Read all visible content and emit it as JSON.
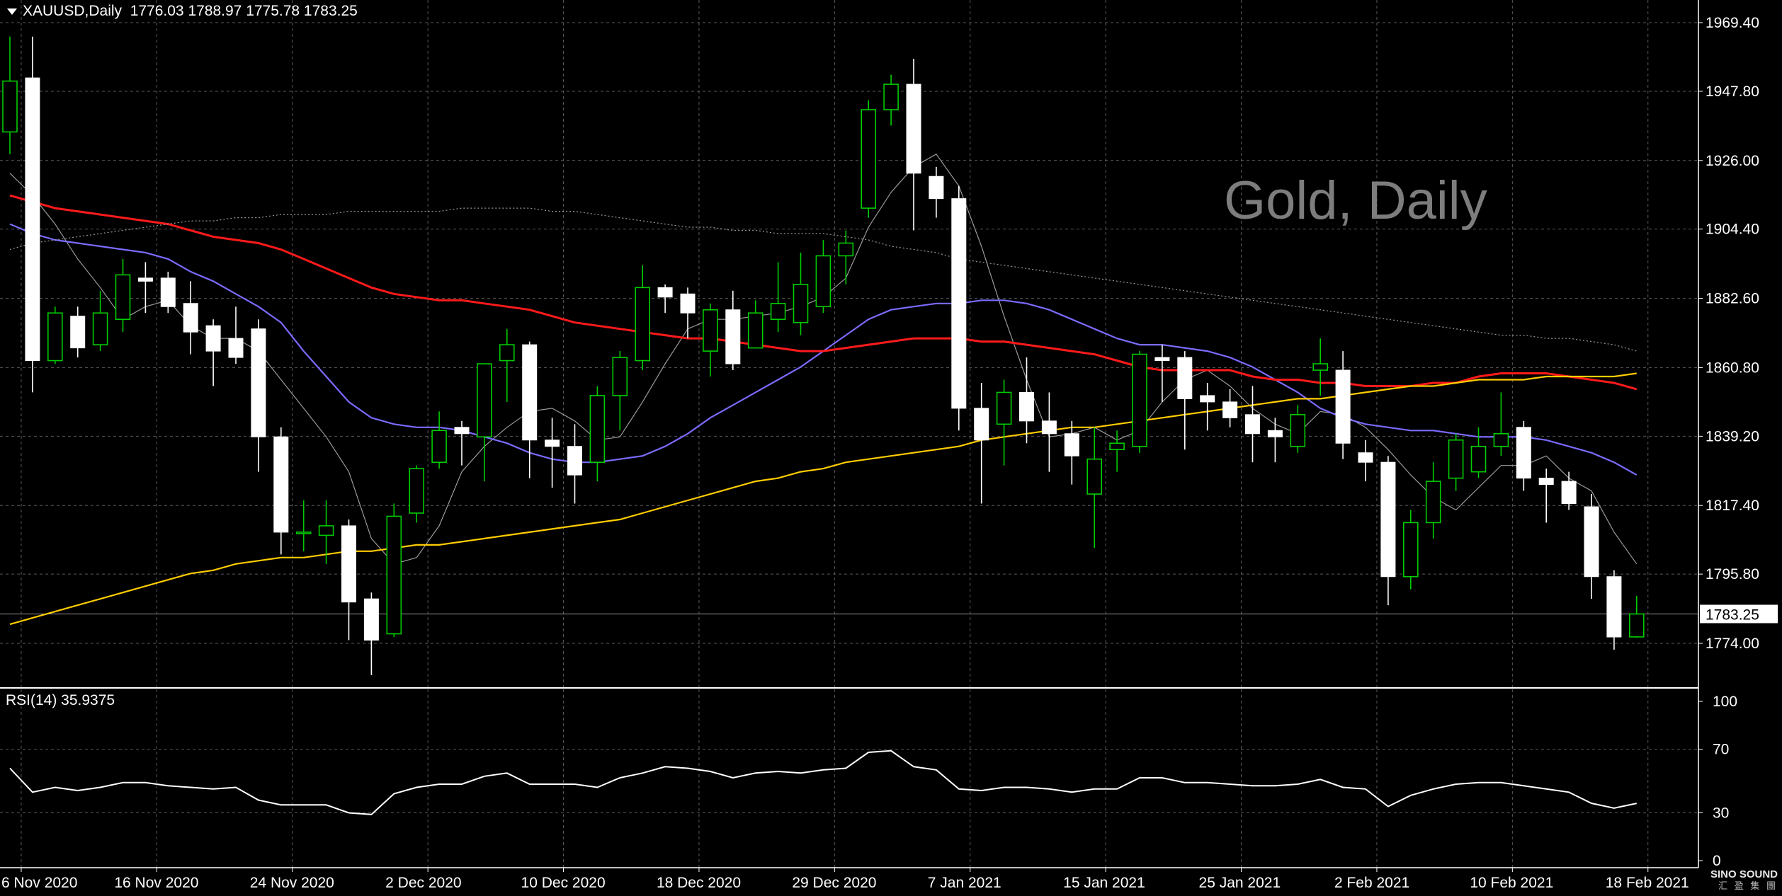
{
  "header": {
    "symbol": "XAUUSD,Daily",
    "ohlc": "1776.03 1788.97 1775.78 1783.25"
  },
  "watermark": "Gold, Daily",
  "rsi_header": "RSI(14) 35.9375",
  "logo": {
    "name": "SINO SOUND",
    "sub": "汇 盈 集 團"
  },
  "colors": {
    "background": "#000000",
    "grid": "#5a5a5a",
    "bull_candle": "#00cc00",
    "bear_candle": "#ffffff",
    "ma_red": "#ff1a1a",
    "ma_blue": "#7b6bff",
    "ma_orange": "#ffcc00",
    "ma_grey": "#9a9a9a",
    "rsi_line": "#ffffff"
  },
  "chart_data": [
    {
      "type": "candlestick",
      "title": "XAUUSD,Daily",
      "y_axis": {
        "ylim": [
          1763,
          1975
        ],
        "ticks": [
          "1969.40",
          "1947.80",
          "1926.00",
          "1904.40",
          "1882.60",
          "1860.80",
          "1839.20",
          "1817.40",
          "1795.80",
          "1774.00"
        ],
        "tick_values": [
          1969.4,
          1947.8,
          1926.0,
          1904.4,
          1882.6,
          1860.8,
          1839.2,
          1817.4,
          1795.8,
          1774.0
        ]
      },
      "x_axis": {
        "labels": [
          "6 Nov 2020",
          "16 Nov 2020",
          "24 Nov 2020",
          "2 Dec 2020",
          "10 Dec 2020",
          "18 Dec 2020",
          "29 Dec 2020",
          "7 Jan 2021",
          "15 Jan 2021",
          "25 Jan 2021",
          "2 Feb 2021",
          "10 Feb 2021",
          "18 Feb 2021"
        ],
        "label_bar_index": [
          0,
          6,
          12,
          18,
          24,
          30,
          36,
          42,
          48,
          54,
          60,
          66,
          72
        ]
      },
      "current_price": "1783.25",
      "current_value": 1783.25,
      "grid": true,
      "candles": [
        {
          "o": 1935,
          "h": 1965,
          "l": 1928,
          "c": 1951
        },
        {
          "o": 1952,
          "h": 1965,
          "l": 1853,
          "c": 1863
        },
        {
          "o": 1863,
          "h": 1880,
          "l": 1862,
          "c": 1878
        },
        {
          "o": 1877,
          "h": 1880,
          "l": 1864,
          "c": 1867
        },
        {
          "o": 1868,
          "h": 1885,
          "l": 1866,
          "c": 1878
        },
        {
          "o": 1876,
          "h": 1895,
          "l": 1872,
          "c": 1890
        },
        {
          "o": 1889,
          "h": 1894,
          "l": 1878,
          "c": 1888
        },
        {
          "o": 1889,
          "h": 1891,
          "l": 1878,
          "c": 1880
        },
        {
          "o": 1881,
          "h": 1888,
          "l": 1865,
          "c": 1872
        },
        {
          "o": 1874,
          "h": 1876,
          "l": 1855,
          "c": 1866
        },
        {
          "o": 1870,
          "h": 1880,
          "l": 1862,
          "c": 1864
        },
        {
          "o": 1873,
          "h": 1876,
          "l": 1828,
          "c": 1839
        },
        {
          "o": 1839,
          "h": 1842,
          "l": 1802,
          "c": 1809
        },
        {
          "o": 1809,
          "h": 1819,
          "l": 1803,
          "c": 1809
        },
        {
          "o": 1808,
          "h": 1819,
          "l": 1799,
          "c": 1811
        },
        {
          "o": 1811,
          "h": 1813,
          "l": 1775,
          "c": 1787
        },
        {
          "o": 1788,
          "h": 1790,
          "l": 1764,
          "c": 1775
        },
        {
          "o": 1777,
          "h": 1818,
          "l": 1776,
          "c": 1814
        },
        {
          "o": 1815,
          "h": 1830,
          "l": 1812,
          "c": 1829
        },
        {
          "o": 1831,
          "h": 1847,
          "l": 1829,
          "c": 1841
        },
        {
          "o": 1842,
          "h": 1844,
          "l": 1830,
          "c": 1840
        },
        {
          "o": 1839,
          "h": 1860,
          "l": 1825,
          "c": 1862
        },
        {
          "o": 1863,
          "h": 1873,
          "l": 1850,
          "c": 1868
        },
        {
          "o": 1868,
          "h": 1869,
          "l": 1826,
          "c": 1838
        },
        {
          "o": 1838,
          "h": 1845,
          "l": 1823,
          "c": 1836
        },
        {
          "o": 1836,
          "h": 1843,
          "l": 1818,
          "c": 1827
        },
        {
          "o": 1831,
          "h": 1855,
          "l": 1825,
          "c": 1852
        },
        {
          "o": 1852,
          "h": 1866,
          "l": 1841,
          "c": 1864
        },
        {
          "o": 1863,
          "h": 1893,
          "l": 1860,
          "c": 1886
        },
        {
          "o": 1886,
          "h": 1887,
          "l": 1878,
          "c": 1883
        },
        {
          "o": 1884,
          "h": 1886,
          "l": 1870,
          "c": 1878
        },
        {
          "o": 1866,
          "h": 1881,
          "l": 1858,
          "c": 1879
        },
        {
          "o": 1879,
          "h": 1885,
          "l": 1860,
          "c": 1862
        },
        {
          "o": 1867,
          "h": 1882,
          "l": 1868,
          "c": 1878
        },
        {
          "o": 1876,
          "h": 1894,
          "l": 1872,
          "c": 1881
        },
        {
          "o": 1875,
          "h": 1897,
          "l": 1871,
          "c": 1887
        },
        {
          "o": 1880,
          "h": 1901,
          "l": 1878,
          "c": 1896
        },
        {
          "o": 1896,
          "h": 1904,
          "l": 1887,
          "c": 1900
        },
        {
          "o": 1911,
          "h": 1945,
          "l": 1908,
          "c": 1942
        },
        {
          "o": 1942,
          "h": 1953,
          "l": 1937,
          "c": 1950
        },
        {
          "o": 1950,
          "h": 1958,
          "l": 1904,
          "c": 1922
        },
        {
          "o": 1921,
          "h": 1924,
          "l": 1908,
          "c": 1914
        },
        {
          "o": 1914,
          "h": 1918,
          "l": 1841,
          "c": 1848
        },
        {
          "o": 1848,
          "h": 1856,
          "l": 1818,
          "c": 1838
        },
        {
          "o": 1843,
          "h": 1857,
          "l": 1830,
          "c": 1853
        },
        {
          "o": 1853,
          "h": 1864,
          "l": 1837,
          "c": 1844
        },
        {
          "o": 1844,
          "h": 1853,
          "l": 1828,
          "c": 1840
        },
        {
          "o": 1840,
          "h": 1844,
          "l": 1824,
          "c": 1833
        },
        {
          "o": 1821,
          "h": 1842,
          "l": 1804,
          "c": 1832
        },
        {
          "o": 1835,
          "h": 1841,
          "l": 1828,
          "c": 1837
        },
        {
          "o": 1836,
          "h": 1866,
          "l": 1834,
          "c": 1865
        },
        {
          "o": 1864,
          "h": 1868,
          "l": 1850,
          "c": 1863
        },
        {
          "o": 1864,
          "h": 1866,
          "l": 1835,
          "c": 1851
        },
        {
          "o": 1852,
          "h": 1856,
          "l": 1841,
          "c": 1850
        },
        {
          "o": 1850,
          "h": 1854,
          "l": 1842,
          "c": 1845
        },
        {
          "o": 1846,
          "h": 1855,
          "l": 1831,
          "c": 1840
        },
        {
          "o": 1841,
          "h": 1845,
          "l": 1831,
          "c": 1839
        },
        {
          "o": 1836,
          "h": 1849,
          "l": 1834,
          "c": 1846
        },
        {
          "o": 1860,
          "h": 1870,
          "l": 1852,
          "c": 1862
        },
        {
          "o": 1860,
          "h": 1866,
          "l": 1832,
          "c": 1837
        },
        {
          "o": 1834,
          "h": 1838,
          "l": 1825,
          "c": 1831
        },
        {
          "o": 1831,
          "h": 1833,
          "l": 1786,
          "c": 1795
        },
        {
          "o": 1795,
          "h": 1816,
          "l": 1791,
          "c": 1812
        },
        {
          "o": 1812,
          "h": 1831,
          "l": 1807,
          "c": 1825
        },
        {
          "o": 1826,
          "h": 1840,
          "l": 1822,
          "c": 1838
        },
        {
          "o": 1828,
          "h": 1842,
          "l": 1826,
          "c": 1836
        },
        {
          "o": 1836,
          "h": 1853,
          "l": 1833,
          "c": 1840
        },
        {
          "o": 1842,
          "h": 1844,
          "l": 1822,
          "c": 1826
        },
        {
          "o": 1826,
          "h": 1829,
          "l": 1812,
          "c": 1824
        },
        {
          "o": 1825,
          "h": 1828,
          "l": 1816,
          "c": 1818
        },
        {
          "o": 1817,
          "h": 1821,
          "l": 1788,
          "c": 1795
        },
        {
          "o": 1795,
          "h": 1797,
          "l": 1772,
          "c": 1776
        },
        {
          "o": 1776.03,
          "h": 1788.97,
          "l": 1775.78,
          "c": 1783.25
        }
      ],
      "overlays": [
        {
          "color": "ma_grey_thin",
          "values": [
            1922,
            1915,
            1906,
            1895,
            1886,
            1876,
            1880,
            1882,
            1874,
            1870,
            1870,
            1866,
            1857,
            1848,
            1839,
            1828,
            1807,
            1799,
            1801,
            1811,
            1828,
            1836,
            1842,
            1847,
            1848,
            1844,
            1838,
            1839,
            1850,
            1862,
            1873,
            1876,
            1876,
            1877,
            1878,
            1880,
            1883,
            1889,
            1905,
            1916,
            1924,
            1928,
            1918,
            1899,
            1877,
            1857,
            1839,
            1840,
            1842,
            1838,
            1841,
            1850,
            1857,
            1860,
            1855,
            1848,
            1843,
            1840,
            1847,
            1846,
            1842,
            1835,
            1827,
            1820,
            1816,
            1823,
            1830,
            1830,
            1833,
            1826,
            1822,
            1809,
            1799
          ]
        },
        {
          "color": "ma_blue",
          "values": [
            1906,
            1903,
            1901,
            1900,
            1899,
            1898,
            1897,
            1895,
            1891,
            1888,
            1884,
            1880,
            1875,
            1866,
            1858,
            1850,
            1845,
            1843,
            1842,
            1842,
            1841,
            1839,
            1837,
            1834,
            1832,
            1831,
            1831,
            1832,
            1833,
            1836,
            1840,
            1845,
            1849,
            1853,
            1857,
            1861,
            1866,
            1871,
            1876,
            1879,
            1880,
            1881,
            1881,
            1882,
            1882,
            1881,
            1879,
            1876,
            1873,
            1870,
            1868,
            1868,
            1867,
            1866,
            1864,
            1861,
            1857,
            1853,
            1848,
            1845,
            1843,
            1842,
            1841,
            1841,
            1840,
            1839,
            1839,
            1839,
            1838,
            1836,
            1834,
            1831,
            1827
          ]
        },
        {
          "color": "ma_red",
          "values": [
            1915,
            1913,
            1911,
            1910,
            1909,
            1908,
            1907,
            1906,
            1904,
            1902,
            1901,
            1900,
            1898,
            1895,
            1892,
            1889,
            1886,
            1884,
            1883,
            1882,
            1882,
            1881,
            1880,
            1879,
            1877,
            1875,
            1874,
            1873,
            1872,
            1871,
            1870,
            1870,
            1869,
            1868,
            1867,
            1866,
            1866,
            1867,
            1868,
            1869,
            1870,
            1870,
            1870,
            1869,
            1869,
            1868,
            1867,
            1866,
            1865,
            1863,
            1861,
            1860,
            1860,
            1860,
            1860,
            1858,
            1857,
            1857,
            1856,
            1856,
            1855,
            1855,
            1855,
            1856,
            1856,
            1858,
            1859,
            1859,
            1859,
            1858,
            1857,
            1856,
            1854
          ]
        },
        {
          "color": "ma_orange",
          "values": [
            1780,
            1782,
            1784,
            1786,
            1788,
            1790,
            1792,
            1794,
            1796,
            1797,
            1799,
            1800,
            1801,
            1801,
            1802,
            1803,
            1803,
            1804,
            1805,
            1805,
            1806,
            1807,
            1808,
            1809,
            1810,
            1811,
            1812,
            1813,
            1815,
            1817,
            1819,
            1821,
            1823,
            1825,
            1826,
            1828,
            1829,
            1831,
            1832,
            1833,
            1834,
            1835,
            1836,
            1838,
            1839,
            1840,
            1841,
            1842,
            1842,
            1843,
            1844,
            1845,
            1846,
            1847,
            1848,
            1849,
            1850,
            1851,
            1851,
            1852,
            1853,
            1854,
            1855,
            1855,
            1856,
            1857,
            1857,
            1857,
            1858,
            1858,
            1858,
            1858,
            1859
          ]
        },
        {
          "color": "ma_grey_dotted",
          "values": [
            1898,
            1900,
            1901,
            1902,
            1903,
            1904,
            1905,
            1906,
            1907,
            1907,
            1908,
            1908,
            1909,
            1909,
            1909,
            1910,
            1910,
            1910,
            1910,
            1910,
            1911,
            1911,
            1911,
            1911,
            1910,
            1910,
            1909,
            1908,
            1907,
            1906,
            1905,
            1905,
            1904,
            1904,
            1903,
            1903,
            1903,
            1902,
            1901,
            1899,
            1898,
            1897,
            1895,
            1894,
            1893,
            1892,
            1891,
            1890,
            1889,
            1888,
            1887,
            1886,
            1885,
            1884,
            1883,
            1882,
            1881,
            1880,
            1879,
            1878,
            1877,
            1876,
            1875,
            1874,
            1873,
            1872,
            1871,
            1871,
            1870,
            1870,
            1869,
            1868,
            1866
          ]
        }
      ]
    },
    {
      "type": "line",
      "title": "RSI(14) 35.9375",
      "current_value": 35.9375,
      "y_axis": {
        "ylim": [
          0,
          100
        ],
        "ticks": [
          "100",
          "70",
          "30",
          "0"
        ],
        "tick_values": [
          100,
          70,
          30,
          0
        ]
      },
      "values": [
        58,
        43,
        46,
        44,
        46,
        49,
        49,
        47,
        46,
        45,
        46,
        38,
        35,
        35,
        35,
        30,
        29,
        42,
        46,
        48,
        48,
        53,
        55,
        48,
        48,
        48,
        46,
        52,
        55,
        59,
        58,
        56,
        52,
        55,
        56,
        55,
        57,
        58,
        68,
        69,
        59,
        57,
        45,
        44,
        46,
        46,
        45,
        43,
        45,
        45,
        52,
        52,
        49,
        49,
        48,
        47,
        47,
        48,
        51,
        46,
        45,
        34,
        41,
        45,
        48,
        49,
        49,
        47,
        45,
        43,
        36,
        33,
        35.94
      ]
    }
  ]
}
